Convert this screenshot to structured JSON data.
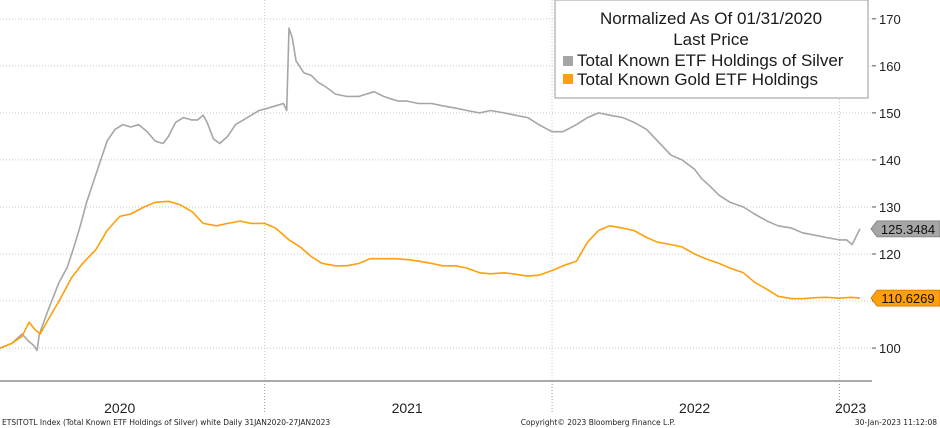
{
  "chart_data": {
    "type": "line",
    "title": "Normalized As Of 01/31/2020",
    "subtitle": "Last Price",
    "legend_position": "top-right",
    "grid": true,
    "ylim": [
      93,
      174
    ],
    "xlim": [
      "2020-01-31",
      "2023-01-27"
    ],
    "y_ticks": [
      100,
      110,
      120,
      130,
      140,
      150,
      160,
      170
    ],
    "x_year_labels": [
      {
        "label": "2020",
        "date": "2020-07-01"
      },
      {
        "label": "2021",
        "date": "2021-07-01"
      },
      {
        "label": "2022",
        "date": "2022-07-01"
      },
      {
        "label": "2023",
        "date": "2023-01-15"
      }
    ],
    "x_year_boundaries": [
      "2021-01-01",
      "2022-01-01",
      "2023-01-01"
    ],
    "series": [
      {
        "name": "Total Known ETF Holdings of Silver",
        "color": "#a6a6a6",
        "last_value_label": "125.3484",
        "points": [
          [
            "2020-01-31",
            100.0
          ],
          [
            "2020-02-15",
            101.0
          ],
          [
            "2020-02-28",
            103.0
          ],
          [
            "2020-03-07",
            101.5
          ],
          [
            "2020-03-14",
            100.5
          ],
          [
            "2020-03-18",
            99.5
          ],
          [
            "2020-03-21",
            103.0
          ],
          [
            "2020-04-01",
            108.0
          ],
          [
            "2020-04-15",
            114.0
          ],
          [
            "2020-04-25",
            117.0
          ],
          [
            "2020-05-03",
            121.0
          ],
          [
            "2020-05-12",
            126.0
          ],
          [
            "2020-05-20",
            131.0
          ],
          [
            "2020-05-28",
            135.0
          ],
          [
            "2020-06-05",
            139.0
          ],
          [
            "2020-06-15",
            144.0
          ],
          [
            "2020-06-25",
            146.5
          ],
          [
            "2020-07-05",
            147.5
          ],
          [
            "2020-07-15",
            147.0
          ],
          [
            "2020-07-25",
            147.5
          ],
          [
            "2020-08-05",
            146.0
          ],
          [
            "2020-08-15",
            144.0
          ],
          [
            "2020-08-25",
            143.5
          ],
          [
            "2020-09-01",
            145.0
          ],
          [
            "2020-09-10",
            148.0
          ],
          [
            "2020-09-20",
            149.0
          ],
          [
            "2020-09-30",
            148.5
          ],
          [
            "2020-10-08",
            148.5
          ],
          [
            "2020-10-15",
            149.5
          ],
          [
            "2020-10-20",
            148.0
          ],
          [
            "2020-10-28",
            144.5
          ],
          [
            "2020-11-05",
            143.5
          ],
          [
            "2020-11-15",
            145.0
          ],
          [
            "2020-11-25",
            147.5
          ],
          [
            "2020-12-05",
            148.5
          ],
          [
            "2020-12-15",
            149.5
          ],
          [
            "2020-12-25",
            150.5
          ],
          [
            "2021-01-05",
            151.0
          ],
          [
            "2021-01-15",
            151.5
          ],
          [
            "2021-01-25",
            152.0
          ],
          [
            "2021-01-29",
            150.5
          ],
          [
            "2021-02-01",
            168.0
          ],
          [
            "2021-02-05",
            166.0
          ],
          [
            "2021-02-10",
            161.0
          ],
          [
            "2021-02-20",
            158.5
          ],
          [
            "2021-03-01",
            158.0
          ],
          [
            "2021-03-10",
            156.5
          ],
          [
            "2021-03-20",
            155.5
          ],
          [
            "2021-04-01",
            154.0
          ],
          [
            "2021-04-15",
            153.5
          ],
          [
            "2021-05-01",
            153.5
          ],
          [
            "2021-05-10",
            154.0
          ],
          [
            "2021-05-20",
            154.5
          ],
          [
            "2021-06-01",
            153.5
          ],
          [
            "2021-06-10",
            153.0
          ],
          [
            "2021-06-20",
            152.5
          ],
          [
            "2021-07-01",
            152.5
          ],
          [
            "2021-07-15",
            152.0
          ],
          [
            "2021-08-01",
            152.0
          ],
          [
            "2021-08-15",
            151.5
          ],
          [
            "2021-09-01",
            151.0
          ],
          [
            "2021-09-15",
            150.5
          ],
          [
            "2021-10-01",
            150.0
          ],
          [
            "2021-10-15",
            150.5
          ],
          [
            "2021-11-01",
            150.0
          ],
          [
            "2021-11-15",
            149.5
          ],
          [
            "2021-12-01",
            149.0
          ],
          [
            "2021-12-15",
            147.5
          ],
          [
            "2022-01-01",
            146.0
          ],
          [
            "2022-01-15",
            146.0
          ],
          [
            "2022-02-01",
            147.5
          ],
          [
            "2022-02-15",
            149.0
          ],
          [
            "2022-03-01",
            150.0
          ],
          [
            "2022-03-15",
            149.5
          ],
          [
            "2022-04-01",
            149.0
          ],
          [
            "2022-04-15",
            148.0
          ],
          [
            "2022-05-01",
            146.5
          ],
          [
            "2022-05-15",
            144.0
          ],
          [
            "2022-06-01",
            141.0
          ],
          [
            "2022-06-15",
            140.0
          ],
          [
            "2022-07-01",
            138.0
          ],
          [
            "2022-07-10",
            136.0
          ],
          [
            "2022-07-20",
            134.5
          ],
          [
            "2022-08-01",
            132.5
          ],
          [
            "2022-08-15",
            131.0
          ],
          [
            "2022-09-01",
            130.0
          ],
          [
            "2022-09-15",
            128.5
          ],
          [
            "2022-10-01",
            127.0
          ],
          [
            "2022-10-15",
            126.0
          ],
          [
            "2022-11-01",
            125.5
          ],
          [
            "2022-11-15",
            124.5
          ],
          [
            "2022-12-01",
            124.0
          ],
          [
            "2022-12-15",
            123.5
          ],
          [
            "2023-01-01",
            123.0
          ],
          [
            "2023-01-10",
            123.0
          ],
          [
            "2023-01-17",
            122.0
          ],
          [
            "2023-01-23",
            124.0
          ],
          [
            "2023-01-27",
            125.3484
          ]
        ]
      },
      {
        "name": "Total Known Gold ETF Holdings",
        "color": "#ff9f0a",
        "last_value_label": "110.6269",
        "points": [
          [
            "2020-01-31",
            100.0
          ],
          [
            "2020-02-15",
            101.0
          ],
          [
            "2020-02-28",
            102.5
          ],
          [
            "2020-03-08",
            105.5
          ],
          [
            "2020-03-15",
            104.0
          ],
          [
            "2020-03-22",
            103.0
          ],
          [
            "2020-04-01",
            106.0
          ],
          [
            "2020-04-15",
            110.0
          ],
          [
            "2020-05-01",
            115.0
          ],
          [
            "2020-05-15",
            118.0
          ],
          [
            "2020-06-01",
            121.0
          ],
          [
            "2020-06-15",
            125.0
          ],
          [
            "2020-07-01",
            128.0
          ],
          [
            "2020-07-15",
            128.5
          ],
          [
            "2020-08-01",
            130.0
          ],
          [
            "2020-08-15",
            131.0
          ],
          [
            "2020-09-01",
            131.2
          ],
          [
            "2020-09-15",
            130.5
          ],
          [
            "2020-10-01",
            129.0
          ],
          [
            "2020-10-15",
            126.5
          ],
          [
            "2020-11-01",
            126.0
          ],
          [
            "2020-11-15",
            126.5
          ],
          [
            "2020-12-01",
            127.0
          ],
          [
            "2020-12-15",
            126.5
          ],
          [
            "2021-01-01",
            126.5
          ],
          [
            "2021-01-15",
            125.5
          ],
          [
            "2021-02-01",
            123.0
          ],
          [
            "2021-02-15",
            121.5
          ],
          [
            "2021-03-01",
            119.5
          ],
          [
            "2021-03-15",
            118.0
          ],
          [
            "2021-04-01",
            117.5
          ],
          [
            "2021-04-15",
            117.5
          ],
          [
            "2021-05-01",
            118.0
          ],
          [
            "2021-05-15",
            119.0
          ],
          [
            "2021-06-01",
            119.0
          ],
          [
            "2021-06-15",
            119.0
          ],
          [
            "2021-07-01",
            118.8
          ],
          [
            "2021-07-15",
            118.5
          ],
          [
            "2021-08-01",
            118.0
          ],
          [
            "2021-08-15",
            117.5
          ],
          [
            "2021-09-01",
            117.5
          ],
          [
            "2021-09-15",
            117.0
          ],
          [
            "2021-10-01",
            116.0
          ],
          [
            "2021-10-15",
            115.8
          ],
          [
            "2021-11-01",
            116.0
          ],
          [
            "2021-11-15",
            115.7
          ],
          [
            "2021-12-01",
            115.3
          ],
          [
            "2021-12-15",
            115.5
          ],
          [
            "2022-01-01",
            116.5
          ],
          [
            "2022-01-15",
            117.5
          ],
          [
            "2022-02-01",
            118.5
          ],
          [
            "2022-02-15",
            122.5
          ],
          [
            "2022-03-01",
            125.0
          ],
          [
            "2022-03-15",
            126.0
          ],
          [
            "2022-04-01",
            125.5
          ],
          [
            "2022-04-15",
            125.0
          ],
          [
            "2022-05-01",
            123.5
          ],
          [
            "2022-05-15",
            122.5
          ],
          [
            "2022-06-01",
            122.0
          ],
          [
            "2022-06-15",
            121.5
          ],
          [
            "2022-07-01",
            120.0
          ],
          [
            "2022-07-15",
            119.0
          ],
          [
            "2022-08-01",
            118.0
          ],
          [
            "2022-08-15",
            117.0
          ],
          [
            "2022-09-01",
            116.0
          ],
          [
            "2022-09-15",
            114.0
          ],
          [
            "2022-10-01",
            112.5
          ],
          [
            "2022-10-15",
            111.0
          ],
          [
            "2022-11-01",
            110.5
          ],
          [
            "2022-11-15",
            110.5
          ],
          [
            "2022-12-01",
            110.7
          ],
          [
            "2022-12-15",
            110.8
          ],
          [
            "2023-01-01",
            110.6
          ],
          [
            "2023-01-15",
            110.8
          ],
          [
            "2023-01-27",
            110.6269
          ]
        ]
      }
    ]
  },
  "footer": {
    "left": "ETSITOTL Index (Total Known ETF Holdings of Silver) white  Daily 31JAN2020-27JAN2023",
    "center": "Copyright© 2023 Bloomberg Finance L.P.",
    "right": "30-Jan-2023 11:12:08"
  }
}
